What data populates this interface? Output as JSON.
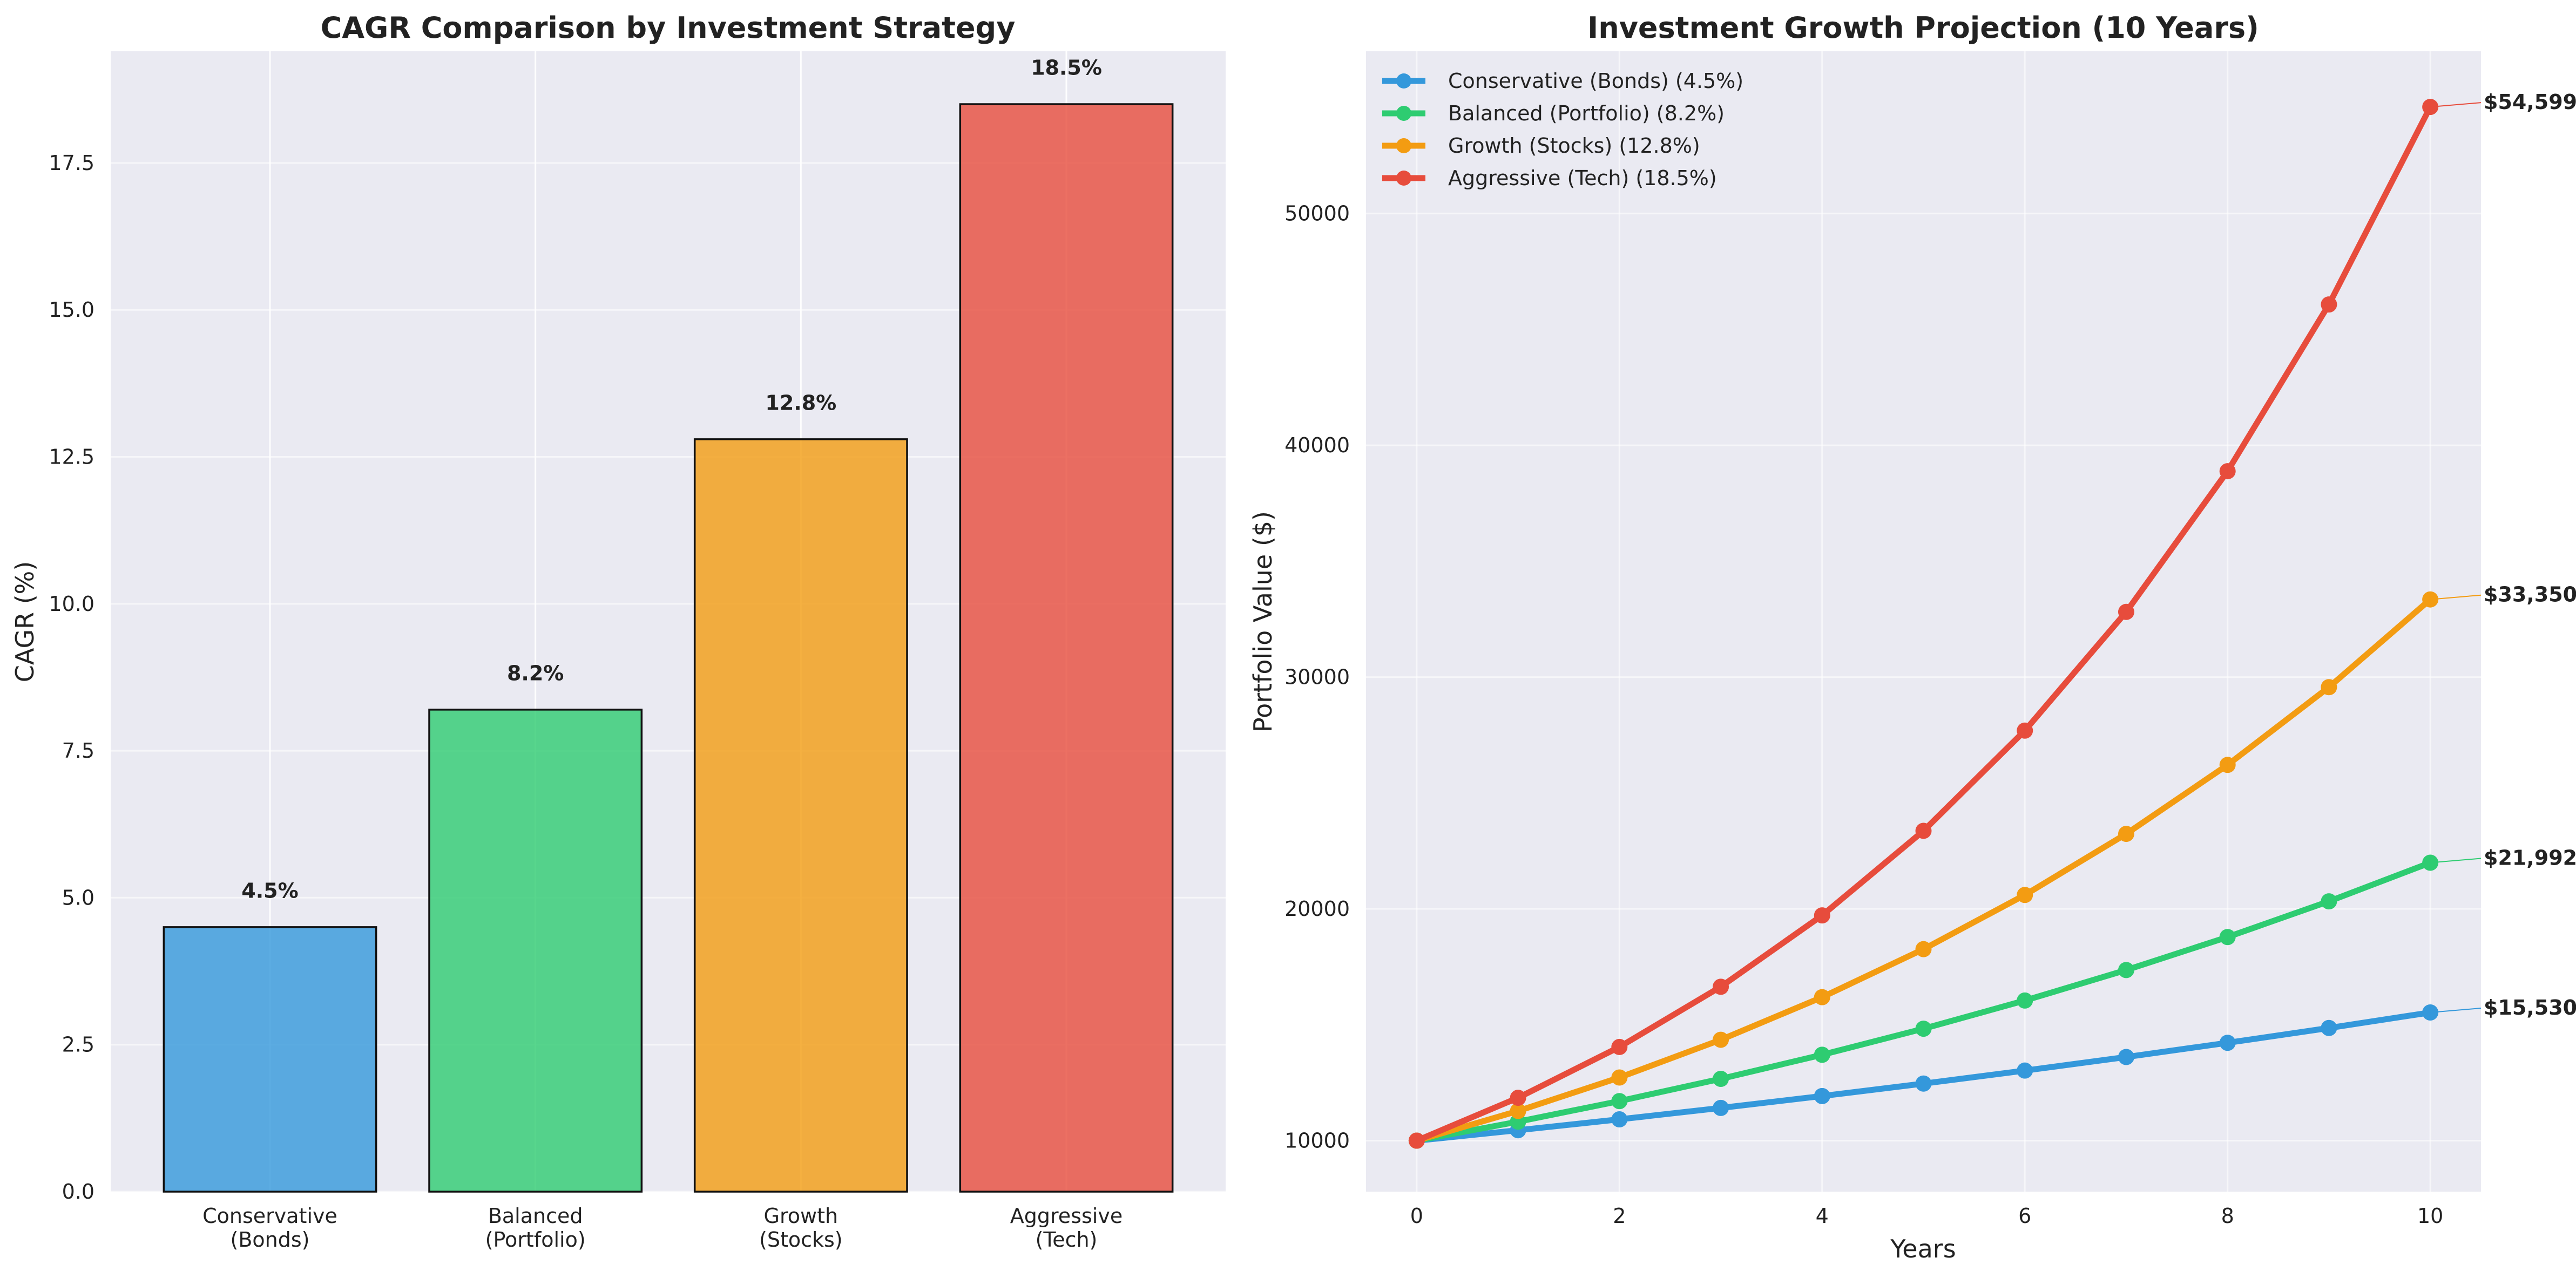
{
  "chart_data": [
    {
      "type": "bar",
      "title": "CAGR Comparison by Investment Strategy",
      "xlabel": "",
      "ylabel": "CAGR (%)",
      "categories": [
        "Conservative\n(Bonds)",
        "Balanced\n(Portfolio)",
        "Growth\n(Stocks)",
        "Aggressive\n(Tech)"
      ],
      "values": [
        4.5,
        8.2,
        12.8,
        18.5
      ],
      "value_labels": [
        "4.5%",
        "8.2%",
        "12.8%",
        "18.5%"
      ],
      "colors": [
        "#3498db",
        "#2ecc71",
        "#f39c12",
        "#e74c3c"
      ],
      "ylim": [
        0,
        19.4
      ],
      "yticks": [
        0.0,
        2.5,
        5.0,
        7.5,
        10.0,
        12.5,
        15.0,
        17.5
      ],
      "ytick_labels": [
        "0.0",
        "2.5",
        "5.0",
        "7.5",
        "10.0",
        "12.5",
        "15.0",
        "17.5"
      ],
      "grid": true
    },
    {
      "type": "line",
      "title": "Investment Growth Projection (10 Years)",
      "xlabel": "Years",
      "ylabel": "Portfolio Value ($)",
      "x": [
        0,
        1,
        2,
        3,
        4,
        5,
        6,
        7,
        8,
        9,
        10
      ],
      "xlim": [
        -0.5,
        10.5
      ],
      "ylim": [
        7800,
        57000
      ],
      "xticks": [
        0,
        2,
        4,
        6,
        8,
        10
      ],
      "yticks": [
        10000,
        20000,
        30000,
        40000,
        50000
      ],
      "legend_position": "top-left",
      "grid": true,
      "series": [
        {
          "name": "Conservative (Bonds) (4.5%)",
          "color": "#3498db",
          "values": [
            10000,
            10450,
            10920,
            11412,
            11925,
            12462,
            13023,
            13609,
            14221,
            14861,
            15530
          ],
          "end_label": "$15,530"
        },
        {
          "name": "Balanced (Portfolio) (8.2%)",
          "color": "#2ecc71",
          "values": [
            10000,
            10820,
            11707,
            12667,
            13706,
            14830,
            16046,
            17361,
            18785,
            20325,
            21992
          ],
          "end_label": "$21,992"
        },
        {
          "name": "Growth (Stocks) (12.8%)",
          "color": "#f39c12",
          "values": [
            10000,
            11280,
            12724,
            14353,
            16190,
            18262,
            20600,
            23236,
            26211,
            29566,
            33350
          ],
          "end_label": "$33,350"
        },
        {
          "name": "Aggressive (Tech) (18.5%)",
          "color": "#e74c3c",
          "values": [
            10000,
            11850,
            14042,
            16640,
            19719,
            23367,
            27690,
            32812,
            38883,
            46076,
            54599
          ],
          "end_label": "$54,599"
        }
      ]
    }
  ]
}
